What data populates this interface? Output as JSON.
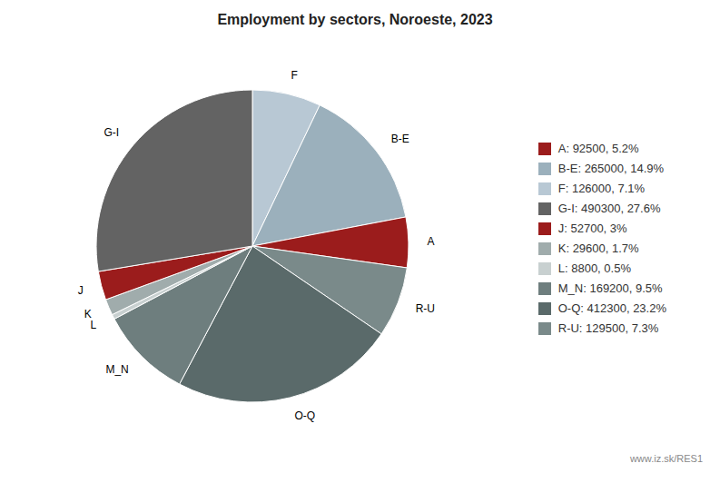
{
  "chart_data": {
    "type": "pie",
    "title": "Employment by sectors, Noroeste, 2023",
    "categories": [
      "F",
      "B-E",
      "A",
      "R-U",
      "O-Q",
      "M_N",
      "L",
      "K",
      "J",
      "G-I"
    ],
    "values": [
      126000,
      265000,
      92500,
      129500,
      412300,
      169200,
      8800,
      29600,
      52700,
      490300
    ],
    "colors": [
      "#B8C8D4",
      "#9BB0BC",
      "#9B1C1C",
      "#7A8A8A",
      "#5A6A6A",
      "#6E7E7E",
      "#C8D0D0",
      "#A0ACAC",
      "#9B1C1C",
      "#636363"
    ],
    "legend": "right",
    "legend_entries": [
      {
        "label": "A: 92500, 5.2%",
        "color": "#9B1C1C"
      },
      {
        "label": "B-E: 265000, 14.9%",
        "color": "#9BB0BC"
      },
      {
        "label": "F: 126000, 7.1%",
        "color": "#B8C8D4"
      },
      {
        "label": "G-I: 490300, 27.6%",
        "color": "#636363"
      },
      {
        "label": "J: 52700, 3%",
        "color": "#9B1C1C"
      },
      {
        "label": "K: 29600, 1.7%",
        "color": "#A0ACAC"
      },
      {
        "label": "L: 8800, 0.5%",
        "color": "#C8D0D0"
      },
      {
        "label": "M_N: 169200, 9.5%",
        "color": "#6E7E7E"
      },
      {
        "label": "O-Q: 412300, 23.2%",
        "color": "#5A6A6A"
      },
      {
        "label": "R-U: 129500, 7.3%",
        "color": "#7A8A8A"
      }
    ],
    "annotations": [
      "www.iz.sk/RES1"
    ]
  }
}
